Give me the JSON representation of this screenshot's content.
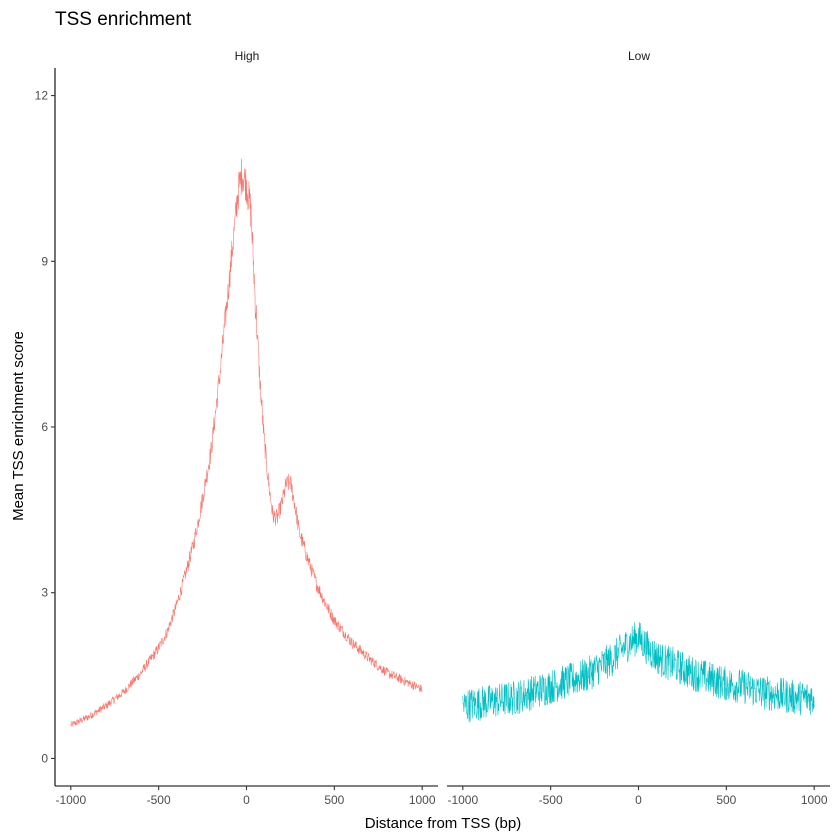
{
  "chart_data": {
    "type": "line",
    "title": "TSS enrichment",
    "xlabel": "Distance from TSS (bp)",
    "ylabel": "Mean TSS enrichment score",
    "xlim": [
      -1000,
      1000
    ],
    "ylim": [
      0,
      12
    ],
    "x_ticks": [
      -1000,
      -500,
      0,
      500,
      1000
    ],
    "y_ticks": [
      0,
      3,
      6,
      9,
      12
    ],
    "facets": [
      "High",
      "Low"
    ],
    "grid": false,
    "legend": "none",
    "series": [
      {
        "facet": "High",
        "color": "#F8766D",
        "x": [
          -1000,
          -900,
          -800,
          -700,
          -600,
          -500,
          -450,
          -400,
          -350,
          -300,
          -250,
          -200,
          -150,
          -100,
          -75,
          -50,
          -25,
          0,
          25,
          50,
          75,
          100,
          125,
          150,
          175,
          200,
          225,
          250,
          275,
          300,
          350,
          400,
          450,
          500,
          600,
          700,
          800,
          900,
          1000
        ],
        "y": [
          0.6,
          0.75,
          0.95,
          1.2,
          1.55,
          2.0,
          2.3,
          2.75,
          3.3,
          3.9,
          4.7,
          5.6,
          7.0,
          8.6,
          9.4,
          10.2,
          10.6,
          10.4,
          9.9,
          8.3,
          6.9,
          5.8,
          5.0,
          4.4,
          4.35,
          4.6,
          4.95,
          5.0,
          4.6,
          4.1,
          3.6,
          3.15,
          2.8,
          2.5,
          2.1,
          1.8,
          1.55,
          1.4,
          1.25
        ]
      },
      {
        "facet": "Low",
        "color": "#00BFC4",
        "x": [
          -1000,
          -900,
          -800,
          -700,
          -600,
          -500,
          -400,
          -300,
          -200,
          -150,
          -100,
          -50,
          0,
          50,
          100,
          150,
          200,
          300,
          400,
          500,
          600,
          700,
          800,
          900,
          1000
        ],
        "y": [
          0.95,
          1.0,
          1.05,
          1.1,
          1.2,
          1.3,
          1.4,
          1.5,
          1.7,
          1.8,
          1.95,
          2.1,
          2.2,
          2.0,
          1.85,
          1.75,
          1.7,
          1.55,
          1.45,
          1.35,
          1.3,
          1.2,
          1.15,
          1.1,
          1.1
        ]
      }
    ]
  }
}
